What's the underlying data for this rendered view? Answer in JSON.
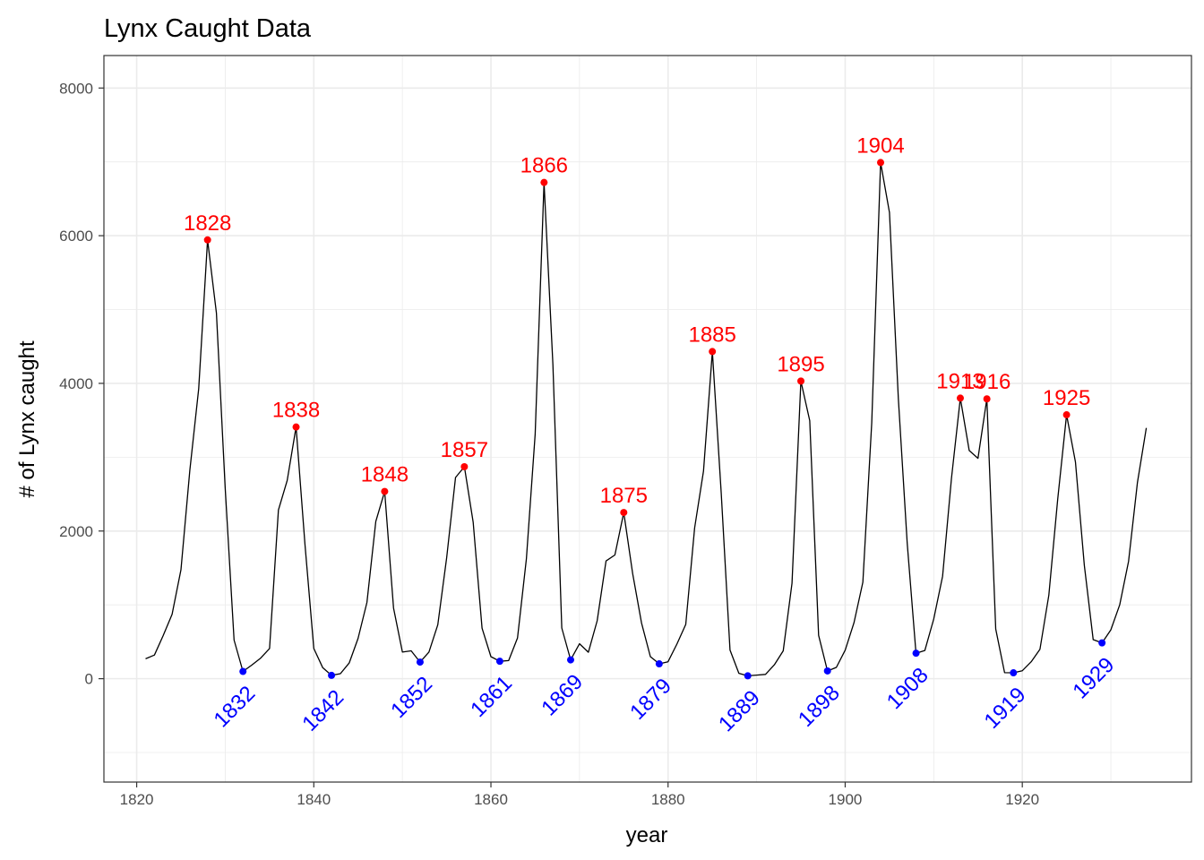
{
  "chart_data": {
    "type": "line",
    "title": "Lynx Caught Data",
    "xlabel": "year",
    "ylabel": "# of Lynx caught",
    "xlim": [
      1816.3,
      1939.1
    ],
    "ylim": [
      -1400,
      8440
    ],
    "xticks": [
      1820,
      1840,
      1860,
      1880,
      1900,
      1920
    ],
    "yticks": [
      0,
      2000,
      4000,
      6000,
      8000
    ],
    "grid": true,
    "colors": {
      "line": "#000000",
      "peak": "#ff0000",
      "trough": "#0000ff",
      "grid": "#ebebeb",
      "panel_border": "#333333"
    },
    "series": [
      {
        "x": [
          1821,
          1822,
          1823,
          1824,
          1825,
          1826,
          1827,
          1828,
          1829,
          1830,
          1831,
          1832,
          1833,
          1834,
          1835,
          1836,
          1837,
          1838,
          1839,
          1840,
          1841,
          1842,
          1843,
          1844,
          1845,
          1846,
          1847,
          1848,
          1849,
          1850,
          1851,
          1852,
          1853,
          1854,
          1855,
          1856,
          1857,
          1858,
          1859,
          1860,
          1861,
          1862,
          1863,
          1864,
          1865,
          1866,
          1867,
          1868,
          1869,
          1870,
          1871,
          1872,
          1873,
          1874,
          1875,
          1876,
          1877,
          1878,
          1879,
          1880,
          1881,
          1882,
          1883,
          1884,
          1885,
          1886,
          1887,
          1888,
          1889,
          1890,
          1891,
          1892,
          1893,
          1894,
          1895,
          1896,
          1897,
          1898,
          1899,
          1900,
          1901,
          1902,
          1903,
          1904,
          1905,
          1906,
          1907,
          1908,
          1909,
          1910,
          1911,
          1912,
          1913,
          1914,
          1915,
          1916,
          1917,
          1918,
          1919,
          1920,
          1921,
          1922,
          1923,
          1924,
          1925,
          1926,
          1927,
          1928,
          1929,
          1930,
          1931,
          1932,
          1933,
          1934
        ],
        "y": [
          269,
          321,
          585,
          871,
          1475,
          2821,
          3928,
          5943,
          4950,
          2577,
          523,
          98,
          184,
          279,
          409,
          2285,
          2685,
          3409,
          1824,
          409,
          151,
          45,
          68,
          213,
          546,
          1033,
          2129,
          2536,
          957,
          361,
          377,
          225,
          360,
          731,
          1638,
          2725,
          2871,
          2119,
          684,
          299,
          236,
          245,
          552,
          1623,
          3311,
          6721,
          4254,
          687,
          255,
          473,
          358,
          784,
          1594,
          1676,
          2251,
          1426,
          756,
          299,
          201,
          229,
          469,
          736,
          2042,
          2811,
          4431,
          2511,
          389,
          73,
          39,
          49,
          59,
          188,
          377,
          1292,
          4031,
          3495,
          587,
          105,
          153,
          387,
          758,
          1307,
          3465,
          6991,
          6313,
          3794,
          1836,
          345,
          382,
          808,
          1388,
          2713,
          3800,
          3091,
          2985,
          3790,
          674,
          81,
          80,
          108,
          229,
          399,
          1132,
          2432,
          3574,
          2935,
          1537,
          529,
          485,
          662,
          1000,
          1590,
          2657,
          3396
        ]
      }
    ],
    "peaks": [
      {
        "year": 1828,
        "value": 5943,
        "label": "1828"
      },
      {
        "year": 1838,
        "value": 3409,
        "label": "1838"
      },
      {
        "year": 1848,
        "value": 2536,
        "label": "1848"
      },
      {
        "year": 1857,
        "value": 2871,
        "label": "1857"
      },
      {
        "year": 1866,
        "value": 6721,
        "label": "1866"
      },
      {
        "year": 1875,
        "value": 2251,
        "label": "1875"
      },
      {
        "year": 1885,
        "value": 4431,
        "label": "1885"
      },
      {
        "year": 1895,
        "value": 4031,
        "label": "1895"
      },
      {
        "year": 1904,
        "value": 6991,
        "label": "1904"
      },
      {
        "year": 1913,
        "value": 3800,
        "label": "1913"
      },
      {
        "year": 1916,
        "value": 3790,
        "label": "1916"
      },
      {
        "year": 1925,
        "value": 3574,
        "label": "1925"
      }
    ],
    "troughs": [
      {
        "year": 1832,
        "value": 98,
        "label": "1832"
      },
      {
        "year": 1842,
        "value": 45,
        "label": "1842"
      },
      {
        "year": 1852,
        "value": 225,
        "label": "1852"
      },
      {
        "year": 1861,
        "value": 236,
        "label": "1861"
      },
      {
        "year": 1869,
        "value": 255,
        "label": "1869"
      },
      {
        "year": 1879,
        "value": 201,
        "label": "1879"
      },
      {
        "year": 1889,
        "value": 39,
        "label": "1889"
      },
      {
        "year": 1898,
        "value": 105,
        "label": "1898"
      },
      {
        "year": 1908,
        "value": 345,
        "label": "1908"
      },
      {
        "year": 1919,
        "value": 80,
        "label": "1919"
      },
      {
        "year": 1929,
        "value": 485,
        "label": "1929"
      }
    ]
  }
}
